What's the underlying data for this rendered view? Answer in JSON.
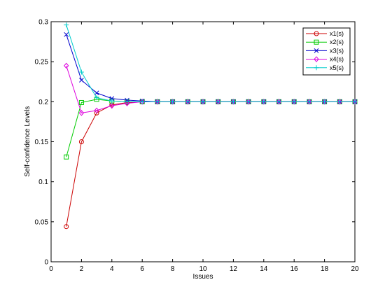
{
  "chart_data": {
    "type": "line",
    "title": "",
    "xlabel": "Issues",
    "ylabel": "Self-confidence Levels",
    "xlim": [
      0,
      20
    ],
    "ylim": [
      0,
      0.3
    ],
    "xticks": [
      0,
      2,
      4,
      6,
      8,
      10,
      12,
      14,
      16,
      18,
      20
    ],
    "yticks": [
      0,
      0.05,
      0.1,
      0.15,
      0.2,
      0.25,
      0.3
    ],
    "grid": false,
    "legend_position": "top-right",
    "x": [
      1,
      2,
      3,
      4,
      5,
      6,
      7,
      8,
      9,
      10,
      11,
      12,
      13,
      14,
      15,
      16,
      17,
      18,
      19,
      20
    ],
    "series": [
      {
        "name": "x1(s)",
        "color": "#cc0000",
        "marker": "circle",
        "values": [
          0.044,
          0.15,
          0.186,
          0.196,
          0.199,
          0.2,
          0.2,
          0.2,
          0.2,
          0.2,
          0.2,
          0.2,
          0.2,
          0.2,
          0.2,
          0.2,
          0.2,
          0.2,
          0.2,
          0.2
        ]
      },
      {
        "name": "x2(s)",
        "color": "#00cc00",
        "marker": "square",
        "values": [
          0.131,
          0.199,
          0.203,
          0.201,
          0.2,
          0.2,
          0.2,
          0.2,
          0.2,
          0.2,
          0.2,
          0.2,
          0.2,
          0.2,
          0.2,
          0.2,
          0.2,
          0.2,
          0.2,
          0.2
        ]
      },
      {
        "name": "x3(s)",
        "color": "#0000cc",
        "marker": "x",
        "values": [
          0.284,
          0.227,
          0.211,
          0.204,
          0.202,
          0.201,
          0.2,
          0.2,
          0.2,
          0.2,
          0.2,
          0.2,
          0.2,
          0.2,
          0.2,
          0.2,
          0.2,
          0.2,
          0.2,
          0.2
        ]
      },
      {
        "name": "x4(s)",
        "color": "#dd00dd",
        "marker": "diamond",
        "values": [
          0.245,
          0.186,
          0.189,
          0.195,
          0.198,
          0.2,
          0.2,
          0.2,
          0.2,
          0.2,
          0.2,
          0.2,
          0.2,
          0.2,
          0.2,
          0.2,
          0.2,
          0.2,
          0.2,
          0.2
        ]
      },
      {
        "name": "x5(s)",
        "color": "#00cccc",
        "marker": "plus",
        "values": [
          0.296,
          0.237,
          0.205,
          0.201,
          0.2,
          0.2,
          0.2,
          0.2,
          0.2,
          0.2,
          0.2,
          0.2,
          0.2,
          0.2,
          0.2,
          0.2,
          0.2,
          0.2,
          0.2,
          0.2
        ]
      }
    ]
  }
}
